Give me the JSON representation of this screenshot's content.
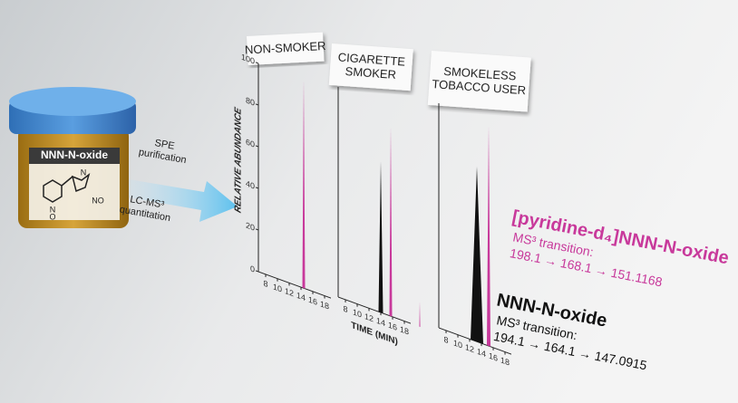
{
  "jar": {
    "label": "NNN-N-oxide",
    "atoms": [
      "N",
      "NO",
      "N",
      "O"
    ]
  },
  "arrow": {
    "step1": [
      "SPE",
      "purification"
    ],
    "step2": [
      "LC-MS³",
      "quantitation"
    ]
  },
  "panels": [
    {
      "label": [
        "NON-SMOKER"
      ]
    },
    {
      "label": [
        "CIGARETTE",
        "SMOKER"
      ]
    },
    {
      "label": [
        "SMOKELESS",
        "TOBACCO USER"
      ]
    }
  ],
  "y_axis": {
    "label": "RELATIVE ABUNDANCE",
    "ticks": [
      100,
      80,
      60,
      40,
      20,
      0
    ]
  },
  "x_axis": {
    "label": "TIME (MIN)",
    "ticks": [
      8,
      10,
      12,
      14,
      16,
      18
    ]
  },
  "legend": [
    {
      "name": "[pyridine-d₄]NNN-N-oxide",
      "subtitle": "MS³ transition:",
      "transition": "198.1 → 168.1 → 151.1168"
    },
    {
      "name": "NNN-N-oxide",
      "subtitle": "MS³ transition:",
      "transition": "194.1 → 164.1 → 147.0915"
    }
  ]
}
